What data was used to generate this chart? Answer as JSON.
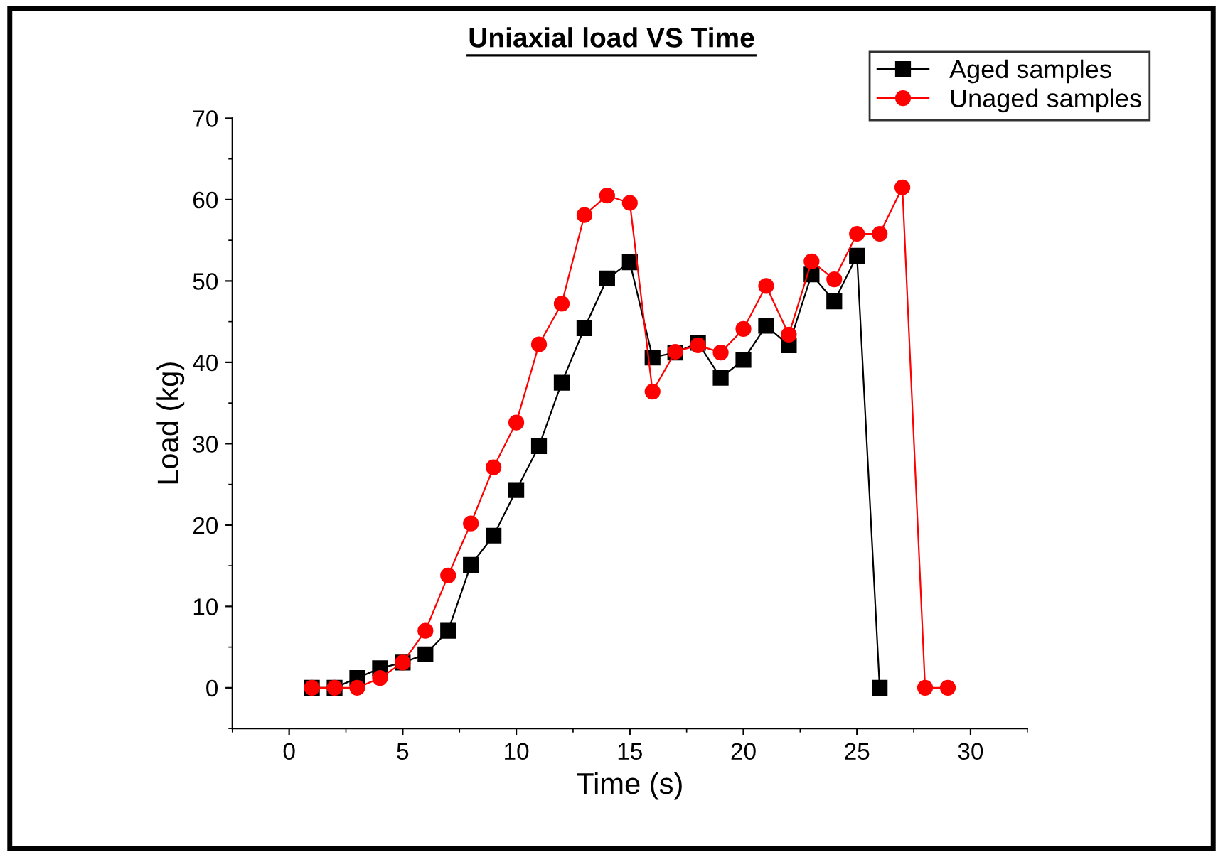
{
  "chart_data": {
    "type": "line",
    "title": "Uniaxial load VS Time",
    "xlabel": "Time (s)",
    "ylabel": "Load (kg)",
    "xlim": [
      -2.5,
      32.5
    ],
    "xticks": [
      0,
      5,
      10,
      15,
      20,
      25,
      30
    ],
    "ylim": [
      -5,
      70
    ],
    "yticks": [
      0,
      10,
      20,
      30,
      40,
      50,
      60,
      70
    ],
    "grid": false,
    "legend": "top right",
    "series": [
      {
        "name": "Aged samples",
        "color": "#000000",
        "marker": "square",
        "x": [
          1,
          2,
          3,
          4,
          5,
          6,
          7,
          8,
          9,
          10,
          11,
          12,
          13,
          14,
          15,
          16,
          17,
          18,
          19,
          20,
          21,
          22,
          23,
          24,
          25,
          26
        ],
        "values": [
          0,
          0,
          1.2,
          2.4,
          3.1,
          4.1,
          7.0,
          15.1,
          18.7,
          24.3,
          29.7,
          37.5,
          44.2,
          50.3,
          52.3,
          40.6,
          41.2,
          42.4,
          38.1,
          40.3,
          44.5,
          42.1,
          50.8,
          47.5,
          53.1,
          0
        ]
      },
      {
        "name": "Unaged samples",
        "color": "#ff0000",
        "marker": "circle",
        "x": [
          1,
          2,
          3,
          4,
          5,
          6,
          7,
          8,
          9,
          10,
          11,
          12,
          13,
          14,
          15,
          16,
          17,
          18,
          19,
          20,
          21,
          22,
          23,
          24,
          25,
          26,
          27,
          28,
          29
        ],
        "values": [
          0,
          0,
          0,
          1.2,
          3.1,
          7.0,
          13.8,
          20.2,
          27.1,
          32.6,
          42.2,
          47.2,
          58.1,
          60.5,
          59.6,
          36.4,
          41.3,
          42.1,
          41.2,
          44.1,
          49.4,
          43.4,
          52.4,
          50.2,
          55.8,
          55.8,
          61.5,
          0,
          0
        ]
      }
    ]
  }
}
